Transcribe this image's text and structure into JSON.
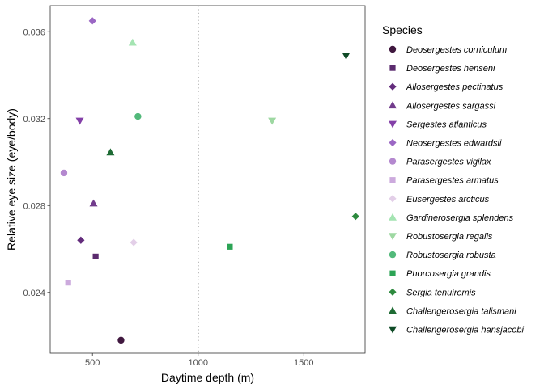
{
  "chart_data": {
    "type": "scatter",
    "xlabel": "Daytime depth (m)",
    "ylabel": "Relative eye size (eye/body)",
    "xlim": [
      300,
      1790
    ],
    "ylim": [
      0.0212,
      0.0372
    ],
    "xticks": [
      500,
      1000,
      1500
    ],
    "yticks": [
      0.024,
      0.028,
      0.032,
      0.036
    ],
    "ytick_labels": [
      "0.024",
      "0.028",
      "0.032",
      "0.036"
    ],
    "grid": false,
    "reference_line": {
      "x": 1000,
      "style": "dotted"
    },
    "legend": {
      "title": "Species",
      "placement": "right"
    },
    "series": [
      {
        "name": "Deosergestes corniculum",
        "shape": "circle",
        "color": "#40183f",
        "x": 635,
        "y": 0.0218
      },
      {
        "name": "Deosergestes henseni",
        "shape": "square",
        "color": "#5b2b6e",
        "x": 515,
        "y": 0.02565
      },
      {
        "name": "Allosergestes pectinatus",
        "shape": "diamond",
        "color": "#632c7c",
        "x": 445,
        "y": 0.0264
      },
      {
        "name": "Allosergestes sargassi",
        "shape": "triangle-up",
        "color": "#723c8c",
        "x": 505,
        "y": 0.0281
      },
      {
        "name": "Sergestes atlanticus",
        "shape": "triangle-down",
        "color": "#8440a8",
        "x": 440,
        "y": 0.0319
      },
      {
        "name": "Neosergestes edwardsii",
        "shape": "diamond",
        "color": "#9b67c4",
        "x": 500,
        "y": 0.0365
      },
      {
        "name": "Parasergestes vigilax",
        "shape": "circle",
        "color": "#b488cf",
        "x": 365,
        "y": 0.0295
      },
      {
        "name": "Parasergestes armatus",
        "shape": "square",
        "color": "#ccaadd",
        "x": 385,
        "y": 0.02445
      },
      {
        "name": "Eusergestes arcticus",
        "shape": "diamond",
        "color": "#e3cfe8",
        "x": 695,
        "y": 0.0263
      },
      {
        "name": "Gardinerosergia splendens",
        "shape": "triangle-up",
        "color": "#a4e4b2",
        "x": 690,
        "y": 0.0355
      },
      {
        "name": "Robustosergia regalis",
        "shape": "triangle-down",
        "color": "#9ed8a2",
        "x": 1350,
        "y": 0.0319
      },
      {
        "name": "Robustosergia robusta",
        "shape": "circle",
        "color": "#52b97a",
        "x": 715,
        "y": 0.0321
      },
      {
        "name": "Phorcosergia grandis",
        "shape": "square",
        "color": "#2ca455",
        "x": 1150,
        "y": 0.0261
      },
      {
        "name": "Sergia tenuiremis",
        "shape": "diamond",
        "color": "#2d8a3e",
        "x": 1745,
        "y": 0.0275
      },
      {
        "name": "Challengerosergia talismani",
        "shape": "triangle-up",
        "color": "#1e6b34",
        "x": 585,
        "y": 0.03045
      },
      {
        "name": "Challengerosergia hansjacobi",
        "shape": "triangle-down",
        "color": "#0f4b27",
        "x": 1700,
        "y": 0.0349
      }
    ]
  }
}
